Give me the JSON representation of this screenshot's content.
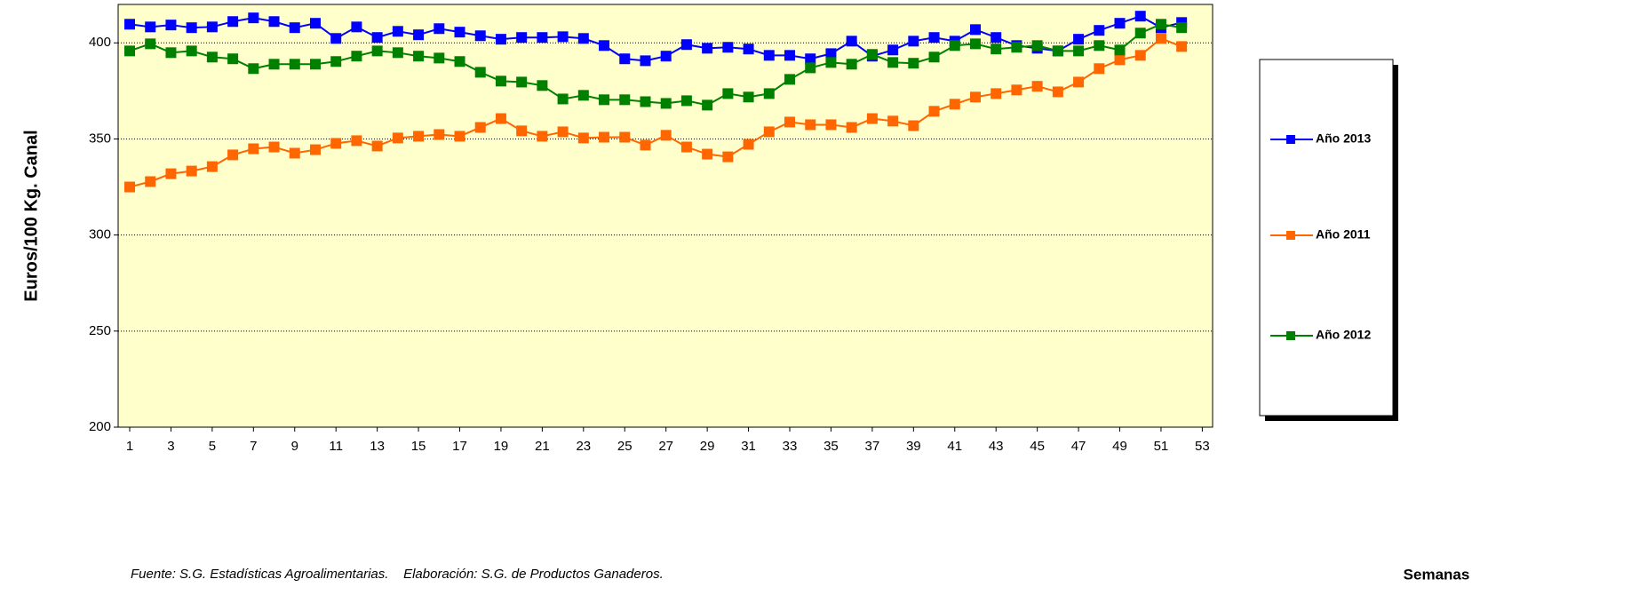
{
  "chart_data": {
    "type": "line",
    "y_label": "Euros/100 Kg. Canal",
    "x_label": "Semanas",
    "footnote": "Fuente: S.G. Estadísticas Agroalimentarias.    Elaboración: S.G. de Productos Ganaderos.",
    "x": [
      1,
      2,
      3,
      4,
      5,
      6,
      7,
      8,
      9,
      10,
      11,
      12,
      13,
      14,
      15,
      16,
      17,
      18,
      19,
      20,
      21,
      22,
      23,
      24,
      25,
      26,
      27,
      28,
      29,
      30,
      31,
      32,
      33,
      34,
      35,
      36,
      37,
      38,
      39,
      40,
      41,
      42,
      43,
      44,
      45,
      46,
      47,
      48,
      49,
      50,
      51,
      52
    ],
    "xlim": [
      0.44,
      53.5
    ],
    "xticks": [
      1,
      3,
      5,
      7,
      9,
      11,
      13,
      15,
      17,
      19,
      21,
      23,
      25,
      27,
      29,
      31,
      33,
      35,
      37,
      39,
      41,
      43,
      45,
      47,
      49,
      51,
      53
    ],
    "ylim": [
      200,
      420
    ],
    "yticks": [
      200,
      250,
      300,
      350,
      400
    ],
    "grid": true,
    "legend": "right",
    "series": [
      {
        "name": "Año 2013",
        "color": "#0000ff",
        "values": [
          409.7,
          408.3,
          409.3,
          407.9,
          408.3,
          411.1,
          413.0,
          411.1,
          407.9,
          410.2,
          402.3,
          408.3,
          402.8,
          406.0,
          404.2,
          407.4,
          405.6,
          403.7,
          401.9,
          402.8,
          402.8,
          403.2,
          402.3,
          398.6,
          391.7,
          390.7,
          393.1,
          399.1,
          397.2,
          397.7,
          396.8,
          393.5,
          393.5,
          391.7,
          394.4,
          400.9,
          393.1,
          396.3,
          400.9,
          402.8,
          400.9,
          406.9,
          402.8,
          398.6,
          397.2,
          395.8,
          401.9,
          406.5,
          410.2,
          413.9,
          407.9,
          410.6
        ]
      },
      {
        "name": "Año 2011",
        "color": "#ff6600",
        "values": [
          325.0,
          327.8,
          331.9,
          333.3,
          335.6,
          341.7,
          344.9,
          345.8,
          342.6,
          344.4,
          347.7,
          349.1,
          346.3,
          350.5,
          351.4,
          352.3,
          351.4,
          356.0,
          360.6,
          354.2,
          351.4,
          353.7,
          350.5,
          350.9,
          350.9,
          346.8,
          351.9,
          345.8,
          342.1,
          340.7,
          347.2,
          353.7,
          358.8,
          357.4,
          357.4,
          356.0,
          360.6,
          359.3,
          356.9,
          364.4,
          368.1,
          371.8,
          373.6,
          375.5,
          377.4,
          374.5,
          379.6,
          386.6,
          391.2,
          393.5,
          402.3,
          398.1
        ]
      },
      {
        "name": "Año 2012",
        "color": "#008000",
        "values": [
          395.8,
          399.5,
          394.9,
          395.8,
          392.6,
          391.7,
          386.6,
          388.9,
          388.9,
          388.9,
          390.3,
          393.1,
          395.8,
          394.9,
          393.1,
          392.1,
          390.3,
          384.7,
          380.1,
          379.6,
          377.8,
          370.8,
          372.7,
          370.4,
          370.4,
          369.4,
          368.5,
          369.9,
          367.6,
          373.6,
          371.8,
          373.6,
          381.0,
          387.0,
          389.8,
          388.9,
          394.0,
          389.8,
          389.4,
          392.6,
          398.6,
          399.5,
          396.8,
          397.7,
          398.6,
          395.8,
          395.8,
          398.6,
          396.3,
          405.1,
          409.7,
          407.9
        ]
      }
    ]
  }
}
